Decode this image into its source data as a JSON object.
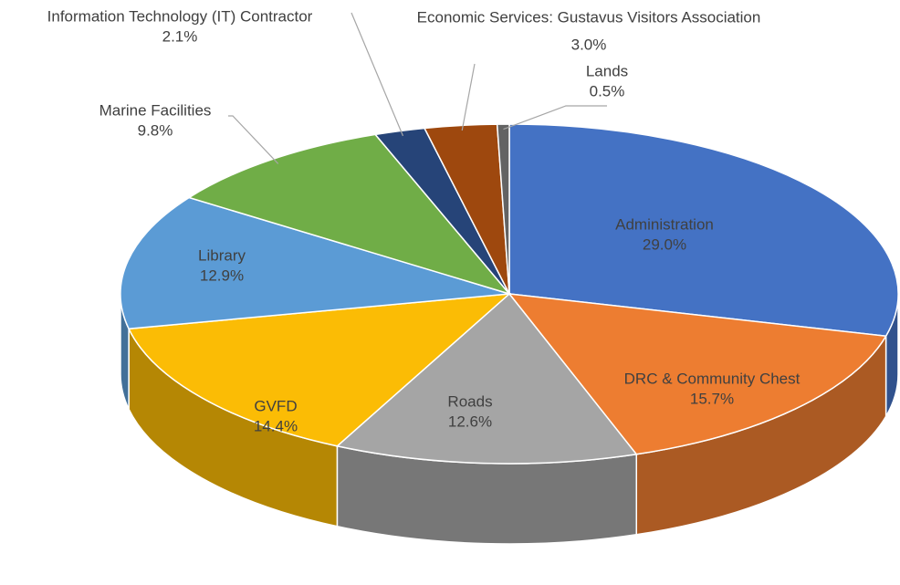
{
  "chart_data": {
    "type": "pie3d",
    "categories": [
      "Administration",
      "DRC & Community Chest",
      "Roads",
      "GVFD",
      "Library",
      "Marine Facilities",
      "Information Technology (IT) Contractor",
      "Economic Services: Gustavus Visitors Association",
      "Lands"
    ],
    "values": [
      29.0,
      15.7,
      12.6,
      14.4,
      12.9,
      9.8,
      2.1,
      3.0,
      0.5
    ],
    "value_labels": [
      "29.0%",
      "15.7%",
      "12.6%",
      "14.4%",
      "12.9%",
      "9.8%",
      "2.1%",
      "3.0%",
      "0.5%"
    ],
    "colors": [
      "#4472c4",
      "#ed7d31",
      "#a5a5a5",
      "#fbbc05",
      "#5b9bd5",
      "#70ad47",
      "#264478",
      "#9e480e",
      "#636363"
    ]
  }
}
